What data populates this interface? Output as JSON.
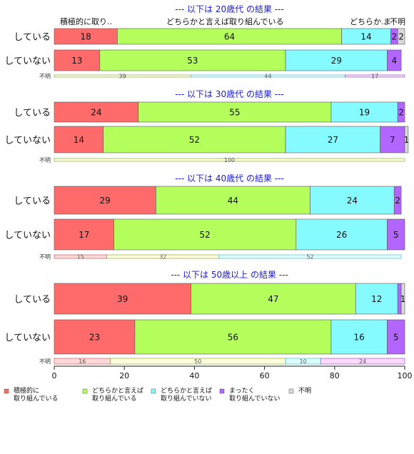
{
  "chart_data": {
    "type": "bar",
    "orientation": "horizontal-stacked",
    "xlim": [
      0,
      100
    ],
    "x_ticks": [
      0,
      20,
      40,
      60,
      80,
      100
    ],
    "top_labels": [
      "積極的に取り..",
      "どちらかと言えば取り組んでいる",
      "どちらか..",
      "ま",
      "不明"
    ],
    "legend": {
      "placement": "bottom",
      "items": [
        {
          "line1": "積極的に",
          "line2": "取り組んでいる",
          "color": "#ff6b6b"
        },
        {
          "line1": "どちらかと言えば",
          "line2": "取り組んでいる",
          "color": "#b5ff5c"
        },
        {
          "line1": "どちらかと言えば",
          "line2": "取り組んでいない",
          "color": "#85fbff"
        },
        {
          "line1": "まったく",
          "line2": "取り組んでいない",
          "color": "#b366ff"
        },
        {
          "line1": "不明",
          "line2": "",
          "color": "#d9d9d9"
        }
      ]
    },
    "panels": [
      {
        "title": "--- 以下は 20歳代 の結果 ---",
        "rows": [
          {
            "label": "している",
            "values": [
              18,
              64,
              14,
              2,
              2
            ],
            "labels": [
              "18",
              "64",
              "14",
              "2",
              "2"
            ]
          },
          {
            "label": "していない",
            "values": [
              13,
              53,
              29,
              4,
              0
            ],
            "labels": [
              "13",
              "53",
              "29",
              "4",
              ""
            ]
          }
        ],
        "unknown": {
          "label": "不明",
          "values": [
            0,
            39,
            44,
            17,
            0
          ],
          "labels": [
            "",
            "39",
            "44",
            "17",
            ""
          ]
        }
      },
      {
        "title": "--- 以下は 30歳代 の結果 ---",
        "rows": [
          {
            "label": "している",
            "values": [
              24,
              55,
              19,
              2,
              0
            ],
            "labels": [
              "24",
              "55",
              "19",
              "2",
              ""
            ]
          },
          {
            "label": "していない",
            "values": [
              14,
              52,
              27,
              7,
              1
            ],
            "labels": [
              "14",
              "52",
              "27",
              "7",
              "1"
            ]
          }
        ],
        "unknown": {
          "label": "不明",
          "values": [
            0,
            100,
            0,
            0,
            0
          ],
          "labels": [
            "",
            "100",
            "",
            "",
            ""
          ]
        }
      },
      {
        "title": "--- 以下は 40歳代 の結果 ---",
        "rows": [
          {
            "label": "している",
            "values": [
              29,
              44,
              24,
              2,
              0
            ],
            "labels": [
              "29",
              "44",
              "24",
              "2",
              ""
            ]
          },
          {
            "label": "していない",
            "values": [
              17,
              52,
              26,
              5,
              0
            ],
            "labels": [
              "17",
              "52",
              "26",
              "5",
              ""
            ]
          }
        ],
        "unknown": {
          "label": "不明",
          "values": [
            15,
            32,
            52,
            0,
            0
          ],
          "labels": [
            "15",
            "32",
            "52",
            "",
            ""
          ]
        }
      },
      {
        "title": "--- 以下は 50歳以上 の結果 ---",
        "rows": [
          {
            "label": "している",
            "values": [
              39,
              47,
              12,
              1,
              1
            ],
            "labels": [
              "39",
              "47",
              "12",
              "",
              "1"
            ]
          },
          {
            "label": "していない",
            "values": [
              23,
              56,
              16,
              5,
              0
            ],
            "labels": [
              "23",
              "56",
              "16",
              "5",
              ""
            ]
          }
        ],
        "unknown": {
          "label": "不明",
          "values": [
            16,
            50,
            10,
            24,
            0
          ],
          "labels": [
            "16",
            "50",
            "10",
            "24",
            ""
          ]
        }
      }
    ]
  }
}
